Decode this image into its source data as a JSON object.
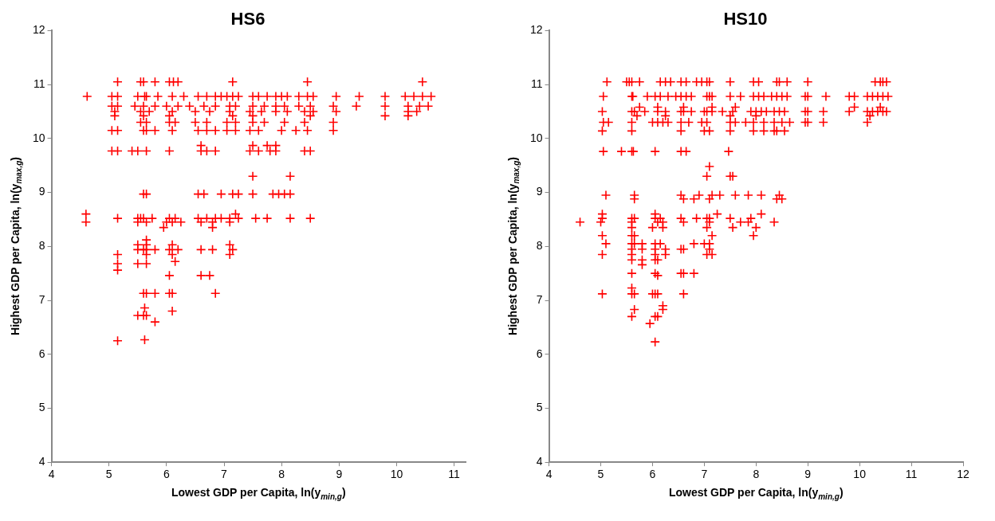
{
  "chart_data": [
    {
      "type": "scatter",
      "title": "HS6",
      "xlabel": "Lowest GDP per Capita, ln(y$_{min,g}$)",
      "ylabel": "Highest GDP per Capita, ln(y$_{max,g}$)",
      "color": "#ff0000",
      "marker": "cross",
      "xlim": [
        4,
        11.2
      ],
      "xticks": [
        4,
        5,
        6,
        7,
        8,
        9,
        10,
        11
      ],
      "ylim": [
        4,
        12
      ],
      "yticks": [
        4,
        5,
        6,
        7,
        8,
        9,
        10,
        11,
        12
      ],
      "x": [
        5.15,
        5.55,
        5.6,
        5.8,
        6.05,
        6.12,
        6.2,
        7.15,
        8.45,
        10.45,
        4.62,
        5.05,
        5.15,
        5.5,
        5.62,
        5.65,
        5.85,
        6.1,
        6.3,
        6.55,
        6.7,
        6.85,
        6.95,
        7.05,
        7.15,
        7.25,
        7.5,
        7.6,
        7.75,
        7.9,
        8.0,
        8.1,
        8.3,
        8.45,
        8.55,
        8.95,
        9.35,
        9.8,
        10.15,
        10.3,
        10.45,
        10.6,
        5.05,
        5.15,
        5.45,
        5.6,
        5.8,
        6.0,
        6.2,
        6.4,
        6.65,
        6.85,
        7.1,
        7.2,
        7.5,
        7.7,
        7.9,
        8.05,
        8.3,
        8.5,
        8.9,
        9.3,
        9.8,
        10.2,
        10.4,
        10.55,
        5.1,
        5.55,
        5.7,
        6.1,
        6.5,
        6.75,
        7.1,
        7.45,
        7.65,
        7.9,
        8.1,
        8.4,
        8.55,
        8.95,
        10.2,
        10.35,
        5.1,
        5.6,
        6.05,
        7.15,
        7.5,
        8.5,
        9.8,
        10.2,
        5.55,
        5.65,
        6.05,
        6.15,
        6.5,
        6.7,
        7.05,
        7.2,
        7.5,
        7.7,
        8.05,
        8.4,
        8.9,
        5.05,
        5.15,
        5.6,
        5.65,
        5.8,
        6.1,
        6.55,
        6.7,
        6.85,
        7.05,
        7.2,
        7.45,
        7.6,
        8.0,
        8.25,
        8.45,
        8.9,
        5.05,
        5.15,
        5.4,
        5.5,
        5.65,
        6.05,
        6.6,
        6.7,
        6.85,
        7.45,
        7.6,
        7.8,
        7.9,
        8.4,
        8.5,
        6.6,
        7.5,
        7.75,
        7.9,
        7.5,
        8.15,
        5.6,
        5.65,
        6.55,
        6.65,
        6.95,
        7.15,
        7.25,
        7.5,
        7.85,
        7.95,
        8.05,
        8.15,
        4.6,
        7.2,
        5.15,
        5.5,
        5.55,
        5.6,
        5.75,
        6.05,
        6.15,
        6.55,
        6.7,
        6.85,
        6.95,
        7.1,
        7.25,
        7.55,
        7.75,
        8.15,
        8.5,
        4.6,
        5.5,
        5.65,
        6.0,
        6.1,
        6.25,
        6.6,
        6.8,
        7.1,
        5.95,
        6.8,
        5.65,
        5.5,
        5.65,
        6.1,
        7.1,
        5.5,
        5.6,
        5.65,
        5.8,
        6.05,
        6.2,
        6.6,
        6.8,
        7.15,
        5.15,
        5.65,
        6.1,
        7.1,
        6.15,
        5.15,
        5.5,
        5.65,
        5.15,
        6.05,
        6.6,
        6.75,
        5.6,
        5.65,
        5.8,
        6.05,
        6.1,
        6.85,
        5.62,
        6.1,
        5.5,
        5.6,
        5.65,
        5.8,
        5.15,
        5.62
      ],
      "values": [
        11.05,
        11.05,
        11.05,
        11.05,
        11.05,
        11.05,
        11.05,
        11.05,
        11.05,
        11.05,
        10.78,
        10.78,
        10.78,
        10.78,
        10.78,
        10.78,
        10.78,
        10.78,
        10.78,
        10.78,
        10.78,
        10.78,
        10.78,
        10.78,
        10.78,
        10.78,
        10.78,
        10.78,
        10.78,
        10.78,
        10.78,
        10.78,
        10.78,
        10.78,
        10.78,
        10.78,
        10.78,
        10.78,
        10.78,
        10.78,
        10.78,
        10.78,
        10.6,
        10.6,
        10.6,
        10.6,
        10.6,
        10.6,
        10.6,
        10.6,
        10.6,
        10.6,
        10.6,
        10.6,
        10.6,
        10.6,
        10.6,
        10.6,
        10.6,
        10.6,
        10.6,
        10.6,
        10.6,
        10.6,
        10.6,
        10.6,
        10.5,
        10.5,
        10.5,
        10.5,
        10.5,
        10.5,
        10.5,
        10.5,
        10.5,
        10.5,
        10.5,
        10.5,
        10.5,
        10.5,
        10.5,
        10.5,
        10.42,
        10.42,
        10.42,
        10.42,
        10.42,
        10.42,
        10.42,
        10.42,
        10.3,
        10.3,
        10.3,
        10.3,
        10.3,
        10.3,
        10.3,
        10.3,
        10.3,
        10.3,
        10.3,
        10.3,
        10.3,
        10.15,
        10.15,
        10.15,
        10.15,
        10.15,
        10.15,
        10.15,
        10.15,
        10.15,
        10.15,
        10.15,
        10.15,
        10.15,
        10.15,
        10.15,
        10.15,
        10.15,
        9.77,
        9.77,
        9.77,
        9.77,
        9.77,
        9.77,
        9.77,
        9.77,
        9.77,
        9.77,
        9.77,
        9.77,
        9.77,
        9.77,
        9.77,
        9.87,
        9.87,
        9.87,
        9.87,
        9.3,
        9.3,
        8.97,
        8.97,
        8.97,
        8.97,
        8.97,
        8.97,
        8.97,
        8.97,
        8.97,
        8.97,
        8.97,
        8.97,
        8.6,
        8.6,
        8.52,
        8.52,
        8.52,
        8.52,
        8.52,
        8.52,
        8.52,
        8.52,
        8.52,
        8.52,
        8.52,
        8.52,
        8.52,
        8.52,
        8.52,
        8.52,
        8.52,
        8.45,
        8.45,
        8.45,
        8.45,
        8.45,
        8.45,
        8.45,
        8.45,
        8.45,
        8.35,
        8.35,
        8.12,
        8.03,
        8.03,
        8.03,
        8.03,
        7.94,
        7.94,
        7.94,
        7.94,
        7.94,
        7.94,
        7.94,
        7.94,
        7.94,
        7.85,
        7.85,
        7.85,
        7.85,
        7.72,
        7.68,
        7.68,
        7.68,
        7.56,
        7.46,
        7.46,
        7.46,
        7.13,
        7.13,
        7.13,
        7.13,
        7.13,
        7.13,
        6.86,
        6.8,
        6.72,
        6.72,
        6.72,
        6.6,
        6.25,
        6.27
      ]
    },
    {
      "type": "scatter",
      "title": "HS10",
      "xlabel": "Lowest GDP per Capita, ln(y$_{min,g}$)",
      "ylabel": "Highest GDP per Capita, ln(y$_{max,g}$)",
      "color": "#ff0000",
      "marker": "cross",
      "xlim": [
        4,
        12
      ],
      "xticks": [
        4,
        5,
        6,
        7,
        8,
        9,
        10,
        11,
        12
      ],
      "ylim": [
        4,
        12
      ],
      "yticks": [
        4,
        5,
        6,
        7,
        8,
        9,
        10,
        11,
        12
      ],
      "x": [
        5.12,
        5.5,
        5.55,
        5.6,
        5.75,
        6.15,
        6.25,
        6.35,
        6.55,
        6.65,
        6.85,
        6.95,
        7.05,
        7.1,
        7.5,
        7.95,
        8.05,
        8.4,
        8.45,
        8.6,
        9.0,
        10.3,
        10.4,
        10.45,
        10.52,
        5.05,
        5.6,
        5.62,
        5.9,
        6.05,
        6.15,
        6.3,
        6.45,
        6.55,
        6.65,
        6.75,
        7.05,
        7.1,
        7.15,
        7.5,
        7.7,
        7.95,
        8.05,
        8.15,
        8.3,
        8.4,
        8.5,
        8.6,
        8.95,
        9.0,
        9.35,
        9.8,
        9.9,
        10.15,
        10.25,
        10.35,
        10.45,
        10.55,
        5.03,
        5.6,
        5.65,
        5.85,
        6.1,
        6.25,
        6.55,
        6.6,
        6.75,
        7.0,
        7.05,
        7.15,
        7.35,
        7.55,
        7.9,
        8.0,
        8.1,
        8.2,
        8.35,
        8.45,
        8.55,
        8.95,
        9.0,
        9.3,
        9.8,
        10.15,
        10.25,
        10.35,
        10.45,
        10.52,
        5.7,
        6.25,
        7.5,
        8.0,
        10.2,
        5.75,
        6.1,
        6.6,
        7.15,
        7.6,
        9.9,
        10.4,
        5.05,
        5.15,
        5.6,
        6.0,
        6.1,
        6.2,
        6.3,
        6.55,
        6.7,
        6.95,
        7.05,
        7.5,
        7.6,
        7.8,
        7.95,
        8.15,
        8.35,
        8.5,
        8.65,
        8.95,
        9.0,
        9.3,
        10.15,
        5.03,
        5.6,
        6.55,
        7.0,
        7.1,
        7.5,
        7.95,
        8.15,
        8.35,
        8.4,
        8.55,
        5.05,
        5.4,
        5.6,
        5.63,
        6.05,
        6.55,
        6.65,
        7.47,
        7.1,
        7.05,
        7.5,
        7.55,
        5.1,
        5.65,
        6.55,
        6.9,
        7.15,
        7.3,
        7.6,
        7.85,
        8.1,
        8.45,
        5.65,
        6.8,
        7.1,
        8.4,
        8.5,
        6.6,
        5.03,
        6.05,
        7.25,
        8.1,
        5.03,
        5.6,
        5.65,
        6.05,
        6.15,
        6.55,
        6.85,
        7.05,
        7.1,
        7.5,
        7.9,
        4.6,
        5.0,
        5.6,
        6.1,
        6.2,
        6.6,
        7.1,
        7.7,
        7.85,
        8.35,
        5.6,
        6.0,
        6.2,
        7.05,
        7.55,
        8.0,
        5.03,
        5.6,
        5.65,
        7.15,
        7.95,
        5.1,
        5.6,
        5.65,
        5.8,
        6.05,
        6.15,
        6.8,
        7.0,
        7.1,
        5.6,
        5.8,
        6.05,
        6.25,
        6.55,
        6.6,
        7.1,
        5.03,
        5.6,
        6.05,
        6.25,
        7.05,
        7.15,
        5.6,
        5.8,
        6.05,
        6.1,
        5.8,
        5.6,
        6.05,
        6.55,
        6.6,
        6.8,
        6.1,
        5.6,
        5.03,
        5.6,
        5.65,
        6.0,
        6.05,
        6.1,
        6.6,
        6.2,
        5.65,
        6.2,
        5.6,
        6.05,
        6.1,
        5.95,
        6.05
      ],
      "values": [
        11.05,
        11.05,
        11.05,
        11.05,
        11.05,
        11.05,
        11.05,
        11.05,
        11.05,
        11.05,
        11.05,
        11.05,
        11.05,
        11.05,
        11.05,
        11.05,
        11.05,
        11.05,
        11.05,
        11.05,
        11.05,
        11.05,
        11.05,
        11.05,
        11.05,
        10.78,
        10.78,
        10.78,
        10.78,
        10.78,
        10.78,
        10.78,
        10.78,
        10.78,
        10.78,
        10.78,
        10.78,
        10.78,
        10.78,
        10.78,
        10.78,
        10.78,
        10.78,
        10.78,
        10.78,
        10.78,
        10.78,
        10.78,
        10.78,
        10.78,
        10.78,
        10.78,
        10.78,
        10.78,
        10.78,
        10.78,
        10.78,
        10.78,
        10.5,
        10.5,
        10.5,
        10.5,
        10.5,
        10.5,
        10.5,
        10.5,
        10.5,
        10.5,
        10.5,
        10.5,
        10.5,
        10.5,
        10.5,
        10.5,
        10.5,
        10.5,
        10.5,
        10.5,
        10.5,
        10.5,
        10.5,
        10.5,
        10.5,
        10.5,
        10.5,
        10.5,
        10.5,
        10.5,
        10.42,
        10.42,
        10.42,
        10.42,
        10.42,
        10.58,
        10.58,
        10.58,
        10.58,
        10.58,
        10.58,
        10.58,
        10.3,
        10.3,
        10.3,
        10.3,
        10.3,
        10.3,
        10.3,
        10.3,
        10.3,
        10.3,
        10.3,
        10.3,
        10.3,
        10.3,
        10.3,
        10.3,
        10.3,
        10.3,
        10.3,
        10.3,
        10.3,
        10.3,
        10.3,
        10.14,
        10.14,
        10.14,
        10.14,
        10.14,
        10.14,
        10.14,
        10.14,
        10.14,
        10.14,
        10.14,
        9.76,
        9.76,
        9.76,
        9.76,
        9.76,
        9.76,
        9.76,
        9.76,
        9.48,
        9.3,
        9.3,
        9.3,
        8.95,
        8.95,
        8.95,
        8.95,
        8.95,
        8.95,
        8.95,
        8.95,
        8.95,
        8.95,
        8.88,
        8.88,
        8.88,
        8.88,
        8.88,
        8.88,
        8.6,
        8.6,
        8.6,
        8.6,
        8.52,
        8.52,
        8.52,
        8.52,
        8.52,
        8.52,
        8.52,
        8.52,
        8.52,
        8.52,
        8.52,
        8.45,
        8.45,
        8.45,
        8.45,
        8.45,
        8.45,
        8.45,
        8.45,
        8.45,
        8.45,
        8.35,
        8.35,
        8.35,
        8.35,
        8.35,
        8.35,
        8.2,
        8.2,
        8.2,
        8.2,
        8.2,
        8.05,
        8.05,
        8.05,
        8.05,
        8.05,
        8.05,
        8.05,
        8.05,
        8.05,
        7.95,
        7.95,
        7.95,
        7.95,
        7.95,
        7.95,
        7.95,
        7.85,
        7.85,
        7.85,
        7.85,
        7.85,
        7.85,
        7.75,
        7.75,
        7.75,
        7.75,
        7.66,
        7.5,
        7.5,
        7.5,
        7.5,
        7.5,
        7.46,
        7.23,
        7.12,
        7.12,
        7.12,
        7.12,
        7.12,
        7.12,
        7.12,
        6.9,
        6.83,
        6.83,
        6.7,
        6.7,
        6.7,
        6.57,
        6.23
      ]
    }
  ]
}
